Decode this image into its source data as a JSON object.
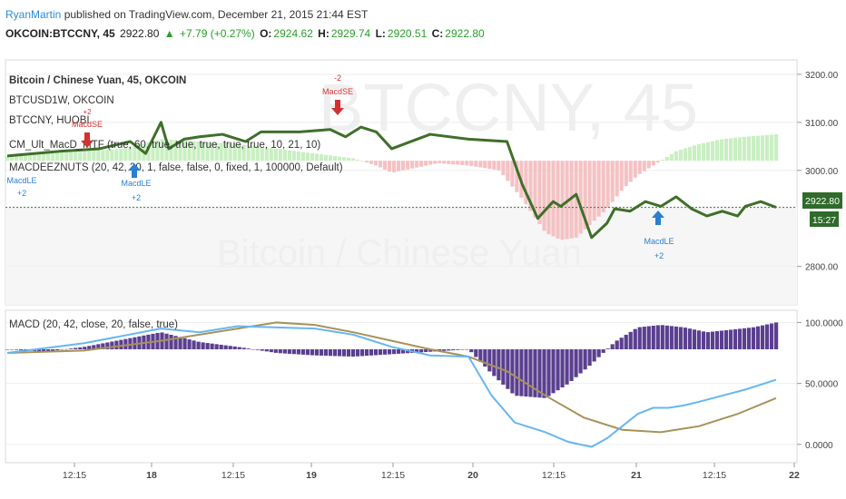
{
  "header": {
    "author": "RyanMartin",
    "published": "published on TradingView.com, December 21, 2015 21:44 EST",
    "symbol": "OKCOIN:BTCCNY, 45",
    "last": "2922.80",
    "change": "+7.79 (+0.27%)",
    "o_label": "O:",
    "o_value": "2924.62",
    "h_label": "H:",
    "h_value": "2929.74",
    "l_label": "L:",
    "l_value": "2920.51",
    "c_label": "C:",
    "c_value": "2922.80"
  },
  "legend": [
    "Bitcoin / Chinese Yuan, 45, OKCOIN",
    "BTCUSD1W, OKCOIN",
    "BTCCNY, HUOBI",
    "CM_Ult_MacD_MTF (true, 60, true, true, true, true, true, 10, 21, 10)",
    "MACDEEZNUTS (20, 42, 20, 1, false, false, 0, fixed, 1, 100000, Default)"
  ],
  "watermark": {
    "symbol": "BTCCNY, 45",
    "name": "Bitcoin / Chinese Yuan"
  },
  "markers": {
    "short_count": "-2",
    "short_label": "MacdSE",
    "short_count_small": "+2",
    "short_label_small": "MacdSE",
    "long_label": "MacdLE",
    "long_count": "+2"
  },
  "price_badge": "2922.80",
  "timer_badge": "15:27",
  "macd_title": "MACD (20, 42, close, 20, false, true)",
  "colors": {
    "price_line": "#3f6f2a",
    "hist_up": "#c9efc2",
    "hist_down": "#f4c2c4",
    "macd_line": "#67b6f0",
    "signal_line": "#a8925a",
    "macd_hist": "#5b3f8f",
    "dotted": "#2a8a2a"
  },
  "chart_data": [
    {
      "type": "line",
      "title": "Bitcoin / Chinese Yuan, 45, OKCOIN",
      "ylim": [
        2720,
        3230
      ],
      "y_ticks": [
        "3200.00",
        "3100.00",
        "3000.00",
        "2800.00"
      ],
      "x_ticks": [
        "12:15",
        "18",
        "12:15",
        "19",
        "12:15",
        "20",
        "12:15",
        "21",
        "12:15",
        "22"
      ],
      "series": [
        {
          "name": "BTCCNY, 45",
          "x": [
            0,
            0.07,
            0.12,
            0.16,
            0.18,
            0.2,
            0.21,
            0.23,
            0.25,
            0.28,
            0.31,
            0.33,
            0.38,
            0.42,
            0.44,
            0.46,
            0.48,
            0.5,
            0.55,
            0.6,
            0.65,
            0.67,
            0.69,
            0.71,
            0.72,
            0.74,
            0.76,
            0.78,
            0.79,
            0.81,
            0.83,
            0.85,
            0.87,
            0.89,
            0.91,
            0.93,
            0.95,
            0.96,
            0.98,
            1.0
          ],
          "y": [
            3030,
            3040,
            3045,
            3060,
            3035,
            3100,
            3045,
            3065,
            3070,
            3075,
            3060,
            3080,
            3080,
            3085,
            3070,
            3090,
            3080,
            3045,
            3075,
            3065,
            3060,
            2970,
            2900,
            2935,
            2925,
            2950,
            2860,
            2890,
            2920,
            2915,
            2935,
            2925,
            2945,
            2920,
            2905,
            2915,
            2905,
            2925,
            2935,
            2923
          ]
        }
      ],
      "histogram": {
        "x": [
          0,
          0.05,
          0.1,
          0.15,
          0.2,
          0.25,
          0.3,
          0.35,
          0.4,
          0.45,
          0.48,
          0.5,
          0.53,
          0.56,
          0.6,
          0.64,
          0.67,
          0.7,
          0.72,
          0.74,
          0.76,
          0.78,
          0.8,
          0.82,
          0.84,
          0.87,
          0.9,
          0.93,
          0.96,
          1.0
        ],
        "values": [
          10,
          15,
          20,
          25,
          45,
          40,
          35,
          25,
          15,
          5,
          -10,
          -25,
          -15,
          -5,
          -10,
          -20,
          -80,
          -150,
          -165,
          -160,
          -130,
          -100,
          -60,
          -30,
          -10,
          20,
          35,
          45,
          50,
          55
        ]
      }
    },
    {
      "type": "line",
      "title": "MACD (20, 42, close, 20, false, true)",
      "ylim": [
        -15,
        110
      ],
      "y_ticks": [
        "100.0000",
        "50.0000",
        "0.0000"
      ],
      "series": [
        {
          "name": "MACD",
          "x": [
            0,
            0.1,
            0.2,
            0.25,
            0.3,
            0.35,
            0.4,
            0.45,
            0.5,
            0.55,
            0.6,
            0.63,
            0.66,
            0.7,
            0.73,
            0.76,
            0.78,
            0.8,
            0.82,
            0.84,
            0.86,
            0.88,
            0.9,
            0.93,
            0.96,
            1.0
          ],
          "y": [
            75,
            83,
            95,
            92,
            97,
            96,
            95,
            90,
            80,
            73,
            72,
            40,
            18,
            10,
            2,
            -2,
            5,
            15,
            25,
            30,
            30,
            32,
            35,
            40,
            45,
            53
          ]
        },
        {
          "name": "Signal",
          "x": [
            0,
            0.1,
            0.2,
            0.3,
            0.35,
            0.4,
            0.45,
            0.5,
            0.55,
            0.6,
            0.65,
            0.7,
            0.75,
            0.8,
            0.85,
            0.9,
            0.95,
            1.0
          ],
          "y": [
            75,
            77,
            85,
            95,
            100,
            98,
            92,
            85,
            78,
            72,
            60,
            40,
            22,
            12,
            10,
            15,
            25,
            38
          ]
        }
      ],
      "histogram": {
        "x": [
          0,
          0.05,
          0.1,
          0.15,
          0.2,
          0.25,
          0.3,
          0.35,
          0.4,
          0.45,
          0.5,
          0.55,
          0.6,
          0.63,
          0.66,
          0.7,
          0.73,
          0.76,
          0.79,
          0.82,
          0.85,
          0.88,
          0.91,
          0.94,
          0.97,
          1.0
        ],
        "values": [
          0,
          -2,
          2,
          8,
          14,
          6,
          2,
          -3,
          -5,
          -6,
          -4,
          -2,
          0,
          -20,
          -38,
          -40,
          -28,
          -12,
          6,
          18,
          20,
          18,
          14,
          16,
          18,
          22
        ]
      }
    }
  ]
}
